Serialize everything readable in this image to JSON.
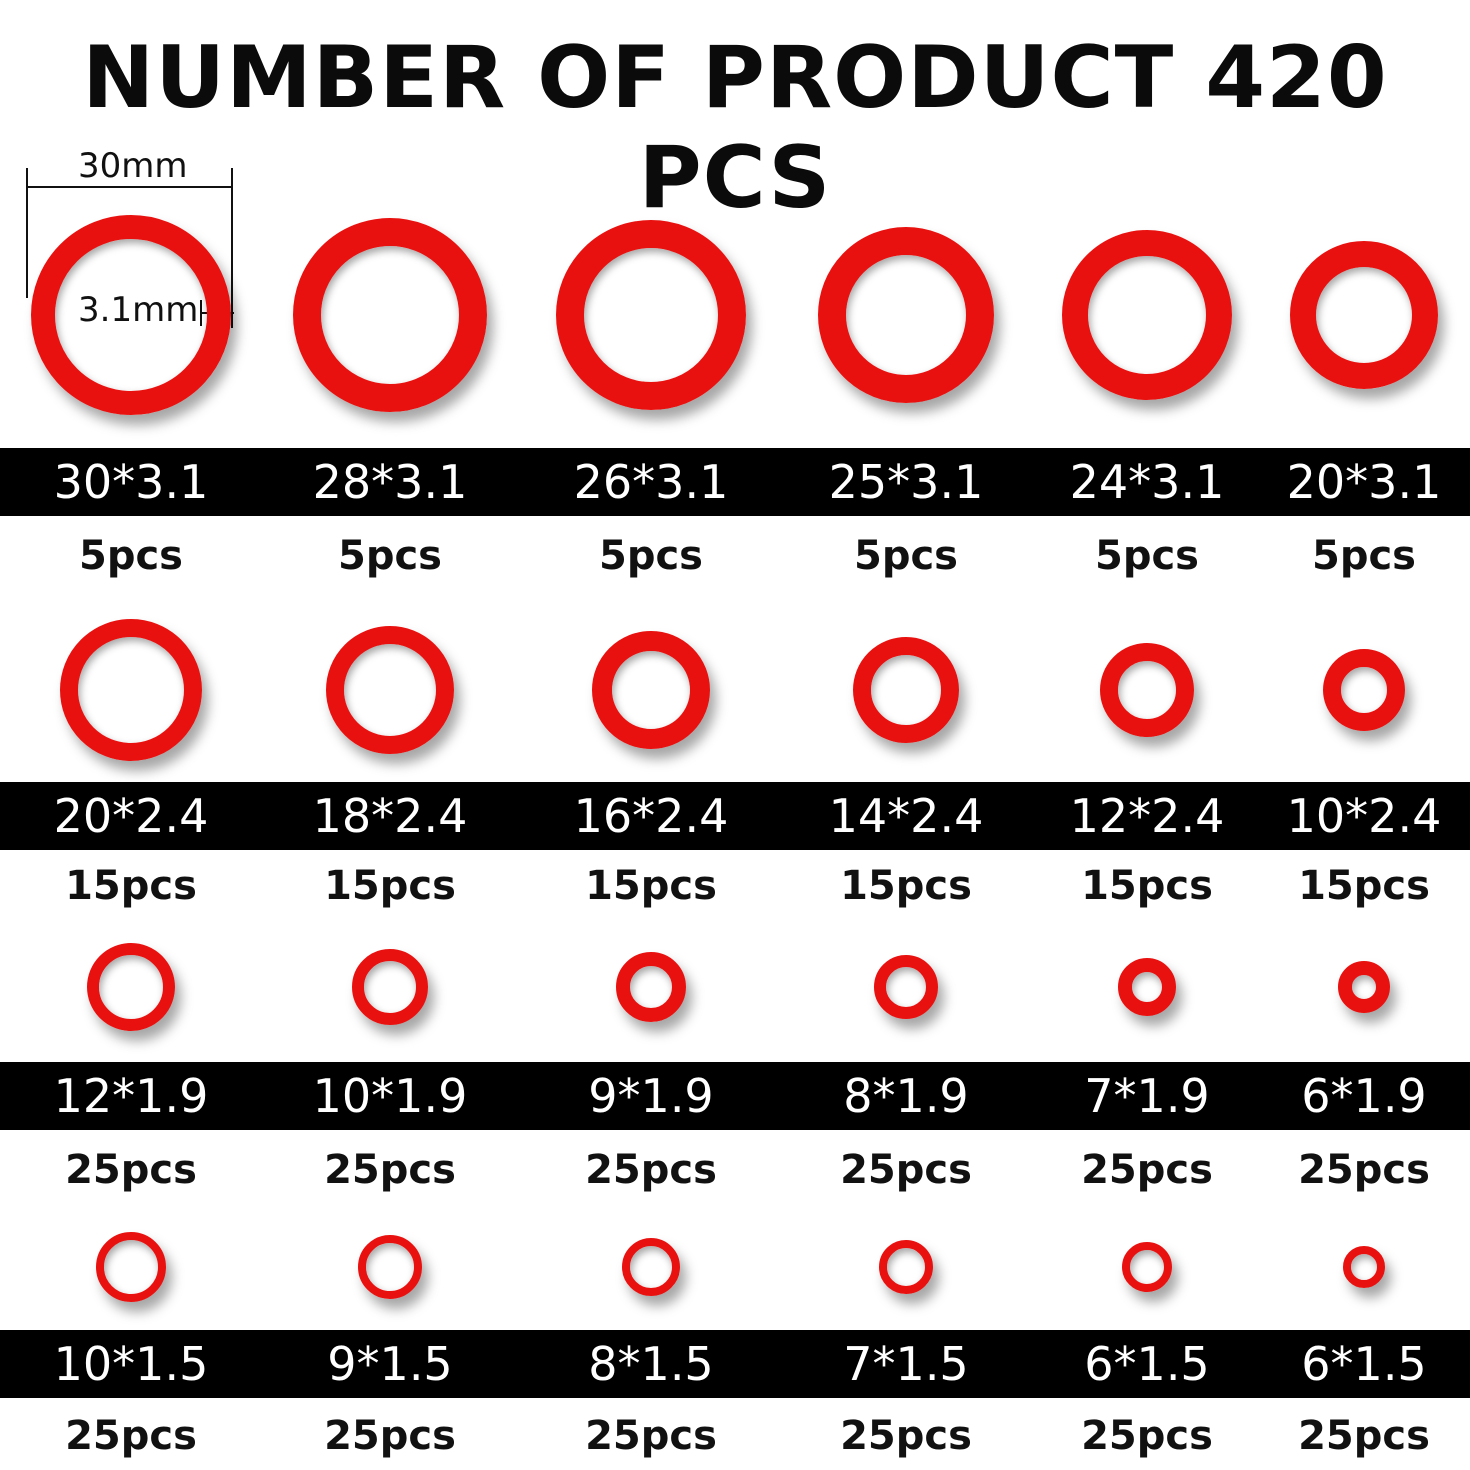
{
  "title": "NUMBER OF PRODUCT 420 PCS",
  "dimension": {
    "outer_label": "30mm",
    "thickness_label": "3.1mm"
  },
  "colors": {
    "ring": "#e8110f",
    "band": "#000000",
    "size_text": "#ffffff",
    "qty_text": "#111111"
  },
  "rows": [
    {
      "items": [
        {
          "size": "30*3.1",
          "qty": "5pcs"
        },
        {
          "size": "28*3.1",
          "qty": "5pcs"
        },
        {
          "size": "26*3.1",
          "qty": "5pcs"
        },
        {
          "size": "25*3.1",
          "qty": "5pcs"
        },
        {
          "size": "24*3.1",
          "qty": "5pcs"
        },
        {
          "size": "20*3.1",
          "qty": "5pcs"
        }
      ]
    },
    {
      "items": [
        {
          "size": "20*2.4",
          "qty": "15pcs"
        },
        {
          "size": "18*2.4",
          "qty": "15pcs"
        },
        {
          "size": "16*2.4",
          "qty": "15pcs"
        },
        {
          "size": "14*2.4",
          "qty": "15pcs"
        },
        {
          "size": "12*2.4",
          "qty": "15pcs"
        },
        {
          "size": "10*2.4",
          "qty": "15pcs"
        }
      ]
    },
    {
      "items": [
        {
          "size": "12*1.9",
          "qty": "25pcs"
        },
        {
          "size": "10*1.9",
          "qty": "25pcs"
        },
        {
          "size": "9*1.9",
          "qty": "25pcs"
        },
        {
          "size": "8*1.9",
          "qty": "25pcs"
        },
        {
          "size": "7*1.9",
          "qty": "25pcs"
        },
        {
          "size": "6*1.9",
          "qty": "25pcs"
        }
      ]
    },
    {
      "items": [
        {
          "size": "10*1.5",
          "qty": "25pcs"
        },
        {
          "size": "9*1.5",
          "qty": "25pcs"
        },
        {
          "size": "8*1.5",
          "qty": "25pcs"
        },
        {
          "size": "7*1.5",
          "qty": "25pcs"
        },
        {
          "size": "6*1.5",
          "qty": "25pcs"
        },
        {
          "size": "6*1.5",
          "qty": "25pcs"
        }
      ]
    }
  ]
}
